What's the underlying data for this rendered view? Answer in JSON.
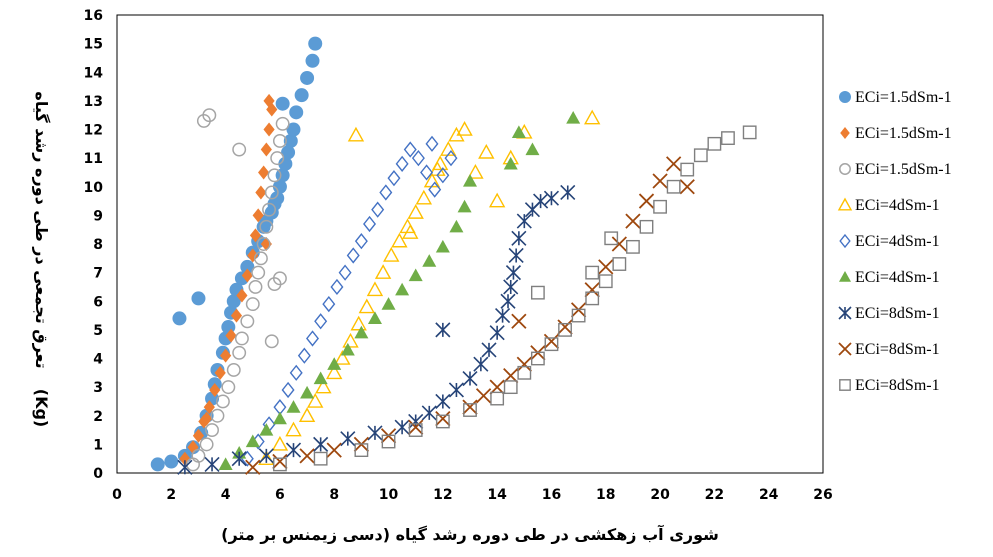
{
  "chart_data": {
    "type": "scatter",
    "title": "",
    "xlabel": "شوری آب زهکشی در طی دوره رشد گیاه (دسی زیمنس بر متر)",
    "ylabel_main": "تعرق تجمعی در طی دوره رشد گیاه",
    "ylabel_unit": "(Kg)",
    "xlim": [
      0,
      26
    ],
    "ylim": [
      0,
      16
    ],
    "x_ticks": [
      0,
      2,
      4,
      6,
      8,
      10,
      12,
      14,
      16,
      18,
      20,
      22,
      24,
      26
    ],
    "y_ticks": [
      0,
      1,
      2,
      3,
      4,
      5,
      6,
      7,
      8,
      9,
      10,
      11,
      12,
      13,
      14,
      15,
      16
    ],
    "grid": false,
    "legend_position": "right",
    "series": [
      {
        "name": "ECi=1.5dSm-1",
        "color": "#5B9BD5",
        "marker": "circle-filled",
        "x": [
          1.5,
          2.0,
          2.5,
          2.8,
          3.1,
          3.3,
          3.5,
          3.6,
          3.7,
          3.9,
          4.0,
          4.1,
          4.2,
          4.3,
          4.4,
          4.6,
          4.8,
          5.0,
          5.2,
          5.4,
          5.5,
          5.7,
          5.8,
          5.9,
          6.0,
          6.1,
          6.2,
          6.3,
          6.4,
          6.5,
          6.6,
          6.8,
          7.0,
          7.2,
          7.3,
          6.1,
          2.3,
          3.0
        ],
        "y": [
          0.3,
          0.4,
          0.6,
          0.9,
          1.4,
          2.0,
          2.6,
          3.1,
          3.6,
          4.2,
          4.7,
          5.1,
          5.6,
          6.0,
          6.4,
          6.8,
          7.2,
          7.7,
          8.1,
          8.6,
          8.8,
          9.1,
          9.4,
          9.6,
          10.0,
          10.4,
          10.8,
          11.2,
          11.6,
          12.0,
          12.6,
          13.2,
          13.8,
          14.4,
          15.0,
          12.9,
          5.4,
          6.1
        ]
      },
      {
        "name": "ECi=1.5dSm-1",
        "color": "#ED7D31",
        "marker": "diamond-filled",
        "x": [
          2.5,
          2.8,
          3.0,
          3.2,
          3.4,
          3.6,
          3.8,
          4.0,
          4.2,
          4.4,
          4.6,
          4.8,
          5.0,
          5.1,
          5.2,
          5.3,
          5.4,
          5.5,
          5.6,
          5.7,
          5.6,
          5.5,
          3.3
        ],
        "y": [
          0.5,
          0.9,
          1.3,
          1.8,
          2.3,
          2.9,
          3.5,
          4.1,
          4.8,
          5.5,
          6.2,
          6.9,
          7.6,
          8.3,
          9.0,
          9.8,
          10.5,
          11.3,
          12.0,
          12.7,
          13.0,
          8.0,
          1.9
        ]
      },
      {
        "name": "ECi=1.5dSm-1",
        "color": "#A5A5A5",
        "marker": "circle-open",
        "x": [
          2.8,
          3.0,
          3.3,
          3.5,
          3.7,
          3.9,
          4.1,
          4.3,
          4.5,
          4.6,
          4.8,
          5.0,
          5.1,
          5.2,
          5.3,
          5.4,
          5.5,
          5.6,
          5.7,
          5.8,
          5.9,
          6.0,
          6.1,
          6.0,
          5.8,
          5.7,
          3.2,
          3.4,
          4.5
        ],
        "y": [
          0.3,
          0.6,
          1.0,
          1.5,
          2.0,
          2.5,
          3.0,
          3.6,
          4.2,
          4.7,
          5.3,
          5.9,
          6.5,
          7.0,
          7.5,
          8.0,
          8.6,
          9.2,
          9.8,
          10.4,
          11.0,
          11.6,
          12.2,
          6.8,
          6.6,
          4.6,
          12.3,
          12.5,
          11.3
        ]
      },
      {
        "name": "ECi=4dSm-1",
        "color": "#FFC000",
        "marker": "triangle-open",
        "x": [
          5.5,
          6.0,
          6.5,
          7.0,
          7.3,
          7.6,
          8.0,
          8.3,
          8.6,
          8.9,
          9.2,
          9.5,
          9.8,
          10.1,
          10.4,
          10.7,
          11.0,
          11.3,
          11.6,
          11.9,
          12.2,
          12.5,
          12.8,
          13.2,
          13.6,
          14.0,
          14.5,
          15.0,
          17.5,
          8.8,
          10.8,
          11.8
        ],
        "y": [
          0.5,
          1.0,
          1.5,
          2.0,
          2.5,
          3.0,
          3.5,
          4.0,
          4.6,
          5.2,
          5.8,
          6.4,
          7.0,
          7.6,
          8.1,
          8.6,
          9.1,
          9.6,
          10.2,
          10.8,
          11.3,
          11.8,
          12.0,
          10.5,
          11.2,
          9.5,
          11.0,
          11.9,
          12.4,
          11.8,
          8.4,
          10.6
        ]
      },
      {
        "name": "ECi=4dSm-1",
        "color": "#4472C4",
        "marker": "diamond-open",
        "x": [
          4.8,
          5.2,
          5.6,
          6.0,
          6.3,
          6.6,
          6.9,
          7.2,
          7.5,
          7.8,
          8.1,
          8.4,
          8.7,
          9.0,
          9.3,
          9.6,
          9.9,
          10.2,
          10.5,
          10.8,
          11.1,
          11.4,
          11.7,
          12.0,
          12.3,
          11.6
        ],
        "y": [
          0.5,
          1.1,
          1.7,
          2.3,
          2.9,
          3.5,
          4.1,
          4.7,
          5.3,
          5.9,
          6.5,
          7.0,
          7.6,
          8.1,
          8.7,
          9.2,
          9.8,
          10.3,
          10.8,
          11.3,
          11.0,
          10.5,
          9.9,
          10.4,
          11.0,
          11.5
        ]
      },
      {
        "name": "ECi=4dSm-1",
        "color": "#70AD47",
        "marker": "triangle-filled",
        "x": [
          4.0,
          4.5,
          5.0,
          5.5,
          6.0,
          6.5,
          7.0,
          7.5,
          8.0,
          8.5,
          9.0,
          9.5,
          10.0,
          10.5,
          11.0,
          11.5,
          12.0,
          12.5,
          12.8,
          13.0,
          14.5,
          14.8,
          15.3,
          16.8
        ],
        "y": [
          0.3,
          0.7,
          1.1,
          1.5,
          1.9,
          2.3,
          2.8,
          3.3,
          3.8,
          4.3,
          4.9,
          5.4,
          5.9,
          6.4,
          6.9,
          7.4,
          7.9,
          8.6,
          9.3,
          10.2,
          10.8,
          11.9,
          11.3,
          12.4
        ]
      },
      {
        "name": "ECi=8dSm-1",
        "color": "#264478",
        "marker": "star",
        "x": [
          2.5,
          3.5,
          4.5,
          5.5,
          6.5,
          7.5,
          8.5,
          9.5,
          10.5,
          11.0,
          11.5,
          12.0,
          12.5,
          13.0,
          13.4,
          13.7,
          14.0,
          14.2,
          14.4,
          14.5,
          14.6,
          14.7,
          14.8,
          15.0,
          15.3,
          15.6,
          16.0,
          16.6,
          12.0
        ],
        "y": [
          0.2,
          0.3,
          0.5,
          0.6,
          0.8,
          1.0,
          1.2,
          1.4,
          1.6,
          1.8,
          2.1,
          2.5,
          2.9,
          3.3,
          3.8,
          4.3,
          4.9,
          5.5,
          6.0,
          6.5,
          7.0,
          7.6,
          8.2,
          8.8,
          9.2,
          9.5,
          9.6,
          9.8,
          5.0
        ]
      },
      {
        "name": "ECi=8dSm-1",
        "color": "#9E480E",
        "marker": "x",
        "x": [
          5.0,
          6.0,
          7.0,
          8.0,
          9.0,
          10.0,
          11.0,
          12.0,
          13.0,
          13.5,
          14.0,
          14.5,
          15.0,
          15.5,
          16.0,
          16.5,
          17.0,
          17.5,
          18.0,
          18.5,
          19.0,
          19.5,
          20.0,
          20.5,
          21.0,
          14.8
        ],
        "y": [
          0.2,
          0.4,
          0.6,
          0.8,
          1.0,
          1.3,
          1.6,
          1.9,
          2.3,
          2.7,
          3.0,
          3.4,
          3.8,
          4.2,
          4.6,
          5.1,
          5.7,
          6.4,
          7.2,
          8.0,
          8.8,
          9.5,
          10.2,
          10.8,
          10.0,
          5.3
        ]
      },
      {
        "name": "ECi=8dSm-1",
        "color": "#7F7F7F",
        "marker": "square-open",
        "x": [
          6.0,
          7.5,
          9.0,
          10.0,
          11.0,
          12.0,
          13.0,
          14.0,
          14.5,
          15.0,
          15.5,
          16.0,
          16.5,
          17.0,
          17.5,
          18.0,
          18.5,
          19.0,
          19.5,
          20.0,
          20.5,
          21.0,
          21.5,
          22.0,
          22.5,
          23.3,
          15.5,
          17.5,
          18.2
        ],
        "y": [
          0.3,
          0.5,
          0.8,
          1.1,
          1.5,
          1.8,
          2.2,
          2.6,
          3.0,
          3.5,
          4.0,
          4.5,
          5.0,
          5.5,
          6.1,
          6.7,
          7.3,
          7.9,
          8.6,
          9.3,
          10.0,
          10.6,
          11.1,
          11.5,
          11.7,
          11.9,
          6.3,
          7.0,
          8.2
        ]
      }
    ]
  }
}
